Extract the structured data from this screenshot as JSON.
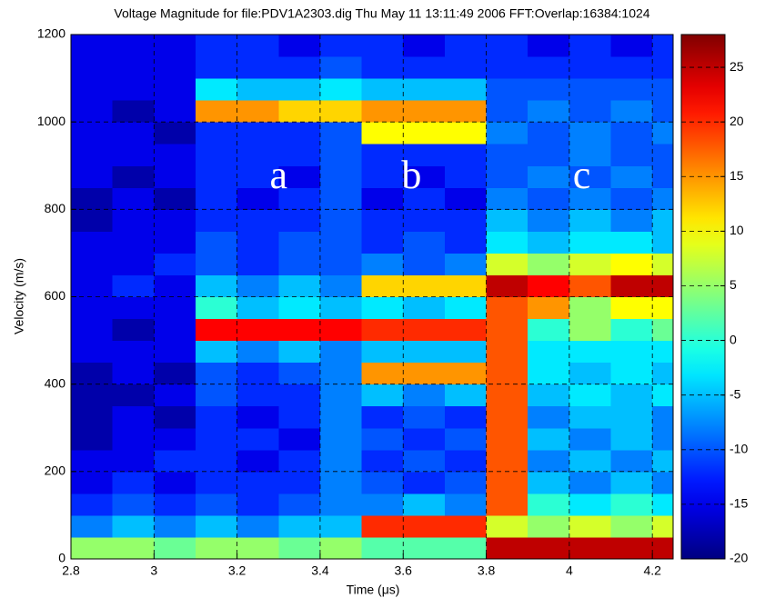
{
  "chart_data": {
    "type": "heatmap",
    "title": "Voltage Magnitude for file:PDV1A2303.dig Thu May 11 13:11:49 2006 FFT:Overlap:16384:1024",
    "x_label": "Time (μs)",
    "y_label": "Velocity (m/s)",
    "xbins": [
      2.8,
      2.9,
      3.0,
      3.1,
      3.2,
      3.3,
      3.4,
      3.5,
      3.6,
      3.7,
      3.8,
      3.9,
      4.0,
      4.1,
      4.2,
      4.25
    ],
    "ybins": [
      0,
      50,
      100,
      150,
      200,
      250,
      300,
      350,
      400,
      450,
      500,
      550,
      600,
      650,
      700,
      750,
      800,
      850,
      900,
      950,
      1000,
      1050,
      1100,
      1150,
      1200
    ],
    "values": [
      [
        5,
        5,
        3,
        5,
        5,
        3,
        5,
        2,
        2,
        2,
        25,
        25,
        25,
        25,
        25
      ],
      [
        -8,
        -5,
        -8,
        -5,
        -8,
        -5,
        -5,
        20,
        20,
        20,
        8,
        5,
        8,
        5,
        8
      ],
      [
        -12,
        -10,
        -12,
        -10,
        -12,
        -10,
        -8,
        -8,
        -5,
        -8,
        18,
        0,
        -3,
        0,
        -3
      ],
      [
        -15,
        -12,
        -15,
        -12,
        -12,
        -12,
        -8,
        -10,
        -12,
        -10,
        18,
        -5,
        -8,
        -5,
        -8
      ],
      [
        -15,
        -15,
        -12,
        -12,
        -15,
        -12,
        -8,
        -12,
        -10,
        -12,
        18,
        -8,
        -5,
        -8,
        -5
      ],
      [
        -18,
        -15,
        -15,
        -12,
        -12,
        -15,
        -8,
        -10,
        -12,
        -10,
        18,
        -5,
        -8,
        -5,
        -8
      ],
      [
        -18,
        -15,
        -18,
        -12,
        -15,
        -12,
        -8,
        -12,
        -10,
        -12,
        18,
        -8,
        -5,
        -5,
        -8
      ],
      [
        -18,
        -18,
        -15,
        -10,
        -12,
        -12,
        -8,
        -5,
        -8,
        -5,
        18,
        -5,
        -3,
        -5,
        -3
      ],
      [
        -18,
        -15,
        -18,
        -10,
        -12,
        -10,
        -8,
        15,
        15,
        15,
        18,
        -3,
        -5,
        -3,
        -5
      ],
      [
        -15,
        -15,
        -15,
        -5,
        -8,
        -5,
        -8,
        -5,
        -5,
        -5,
        18,
        -3,
        -3,
        -3,
        -3
      ],
      [
        -15,
        -18,
        -15,
        22,
        22,
        22,
        22,
        20,
        20,
        20,
        18,
        0,
        5,
        0,
        3
      ],
      [
        -15,
        -15,
        -15,
        0,
        -5,
        -3,
        -5,
        -3,
        -5,
        -3,
        18,
        15,
        5,
        10,
        10
      ],
      [
        -15,
        -12,
        -15,
        -5,
        -8,
        -5,
        -8,
        12,
        12,
        12,
        25,
        22,
        18,
        25,
        25
      ],
      [
        -15,
        -15,
        -12,
        -10,
        -12,
        -10,
        -10,
        -8,
        -10,
        -8,
        8,
        5,
        8,
        10,
        8
      ],
      [
        -15,
        -15,
        -15,
        -10,
        -12,
        -10,
        -10,
        -12,
        -10,
        -12,
        -3,
        -5,
        -3,
        -3,
        -5
      ],
      [
        -18,
        -15,
        -15,
        -12,
        -12,
        -12,
        -10,
        -12,
        -12,
        -12,
        -5,
        -8,
        -5,
        -8,
        -5
      ],
      [
        -18,
        -15,
        -18,
        -12,
        -15,
        -12,
        -10,
        -15,
        -12,
        -15,
        -8,
        -10,
        -8,
        -10,
        -8
      ],
      [
        -15,
        -18,
        -15,
        -12,
        -12,
        -15,
        -10,
        -12,
        -15,
        -12,
        -10,
        -8,
        -10,
        -8,
        -10
      ],
      [
        -15,
        -15,
        -15,
        -12,
        -12,
        -12,
        -10,
        -12,
        -12,
        -12,
        -10,
        -10,
        -8,
        -10,
        -10
      ],
      [
        -15,
        -15,
        -18,
        -12,
        -12,
        -12,
        -10,
        10,
        10,
        10,
        -8,
        -10,
        -8,
        -10,
        -8
      ],
      [
        -15,
        -18,
        -15,
        15,
        15,
        12,
        12,
        15,
        15,
        15,
        -10,
        -8,
        -10,
        -8,
        -10
      ],
      [
        -15,
        -15,
        -15,
        -3,
        -5,
        -5,
        -3,
        -5,
        -5,
        -5,
        -10,
        -10,
        -10,
        -10,
        -10
      ],
      [
        -15,
        -15,
        -15,
        -12,
        -12,
        -12,
        -10,
        -12,
        -12,
        -12,
        -12,
        -12,
        -12,
        -12,
        -12
      ],
      [
        -15,
        -15,
        -15,
        -12,
        -12,
        -15,
        -12,
        -12,
        -15,
        -12,
        -12,
        -15,
        -12,
        -15,
        -12
      ]
    ],
    "xlim": [
      2.8,
      4.25
    ],
    "ylim": [
      0,
      1200
    ],
    "xticks": [
      2.8,
      3,
      3.2,
      3.4,
      3.6,
      3.8,
      4,
      4.2
    ],
    "yticks": [
      0,
      200,
      400,
      600,
      800,
      1000,
      1200
    ],
    "colormap": "jet",
    "clim": [
      -20,
      28
    ],
    "cticks": [
      -20,
      -15,
      -10,
      -5,
      0,
      5,
      10,
      15,
      20,
      25
    ],
    "grid": true,
    "annotations": [
      "a",
      "b",
      "c"
    ]
  }
}
